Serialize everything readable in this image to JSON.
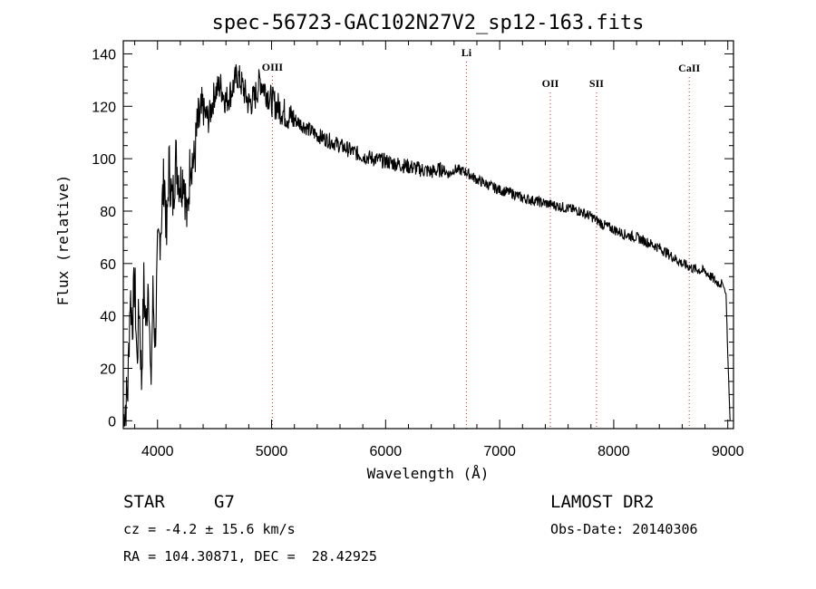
{
  "chart_data": {
    "type": "line",
    "title": "spec-56723-GAC102N27V2_sp12-163.fits",
    "xlabel": "Wavelength (Å)",
    "ylabel": "Flux (relative)",
    "xlim": [
      3700,
      9050
    ],
    "ylim": [
      -3,
      145
    ],
    "x_ticks": [
      4000,
      5000,
      6000,
      7000,
      8000,
      9000
    ],
    "y_ticks": [
      0,
      20,
      40,
      60,
      80,
      100,
      120,
      140
    ],
    "grid": false,
    "series": [
      {
        "x": [
          3700,
          3740,
          3760,
          3780,
          3800,
          3820,
          3840,
          3860,
          3880,
          3900,
          3920,
          3940,
          3960,
          3980,
          4000,
          4030,
          4060,
          4080,
          4100,
          4130,
          4160,
          4200,
          4230,
          4260,
          4290,
          4320,
          4350,
          4400,
          4450,
          4500,
          4550,
          4600,
          4650,
          4700,
          4750,
          4800,
          4850,
          4900,
          4950,
          5000,
          5050,
          5100,
          5150,
          5200,
          5300,
          5400,
          5500,
          5600,
          5700,
          5800,
          5900,
          6000,
          6100,
          6200,
          6300,
          6400,
          6500,
          6560,
          6600,
          6700,
          6800,
          6900,
          7000,
          7100,
          7200,
          7300,
          7400,
          7500,
          7600,
          7700,
          7800,
          7900,
          8000,
          8100,
          8200,
          8300,
          8400,
          8500,
          8600,
          8650,
          8700,
          8800,
          8900,
          8960,
          8985,
          9000,
          9020
        ],
        "y": [
          0,
          12,
          48,
          38,
          55,
          22,
          45,
          15,
          52,
          35,
          58,
          10,
          48,
          30,
          62,
          75,
          95,
          68,
          98,
          82,
          100,
          90,
          95,
          75,
          102,
          98,
          112,
          118,
          115,
          125,
          128,
          122,
          126,
          132,
          127,
          121,
          123,
          130,
          126,
          122,
          120,
          118,
          116,
          115,
          112,
          109,
          107,
          105,
          103,
          101,
          100,
          99,
          98,
          97,
          96,
          95,
          96,
          94,
          96,
          95,
          92,
          90,
          88,
          87,
          85,
          84,
          83,
          82,
          81,
          80,
          78,
          75,
          73,
          71,
          70,
          68,
          66,
          63,
          60,
          59,
          58,
          57,
          53,
          52,
          48,
          25,
          0
        ]
      }
    ],
    "annotations": [
      {
        "label": "OIII",
        "x": 5007
      },
      {
        "label": "Li",
        "x": 6708
      },
      {
        "label": "OII",
        "x": 7444
      },
      {
        "label": "SII",
        "x": 7849
      },
      {
        "label": "CaII",
        "x": 8662
      }
    ]
  },
  "footer": {
    "object_type": "STAR",
    "subclass": "G7",
    "survey": "LAMOST DR2",
    "cz": "cz = -4.2 ± 15.6 km/s",
    "obs_date": "Obs-Date: 20140306",
    "coords": "RA = 104.30871, DEC =  28.42925"
  }
}
